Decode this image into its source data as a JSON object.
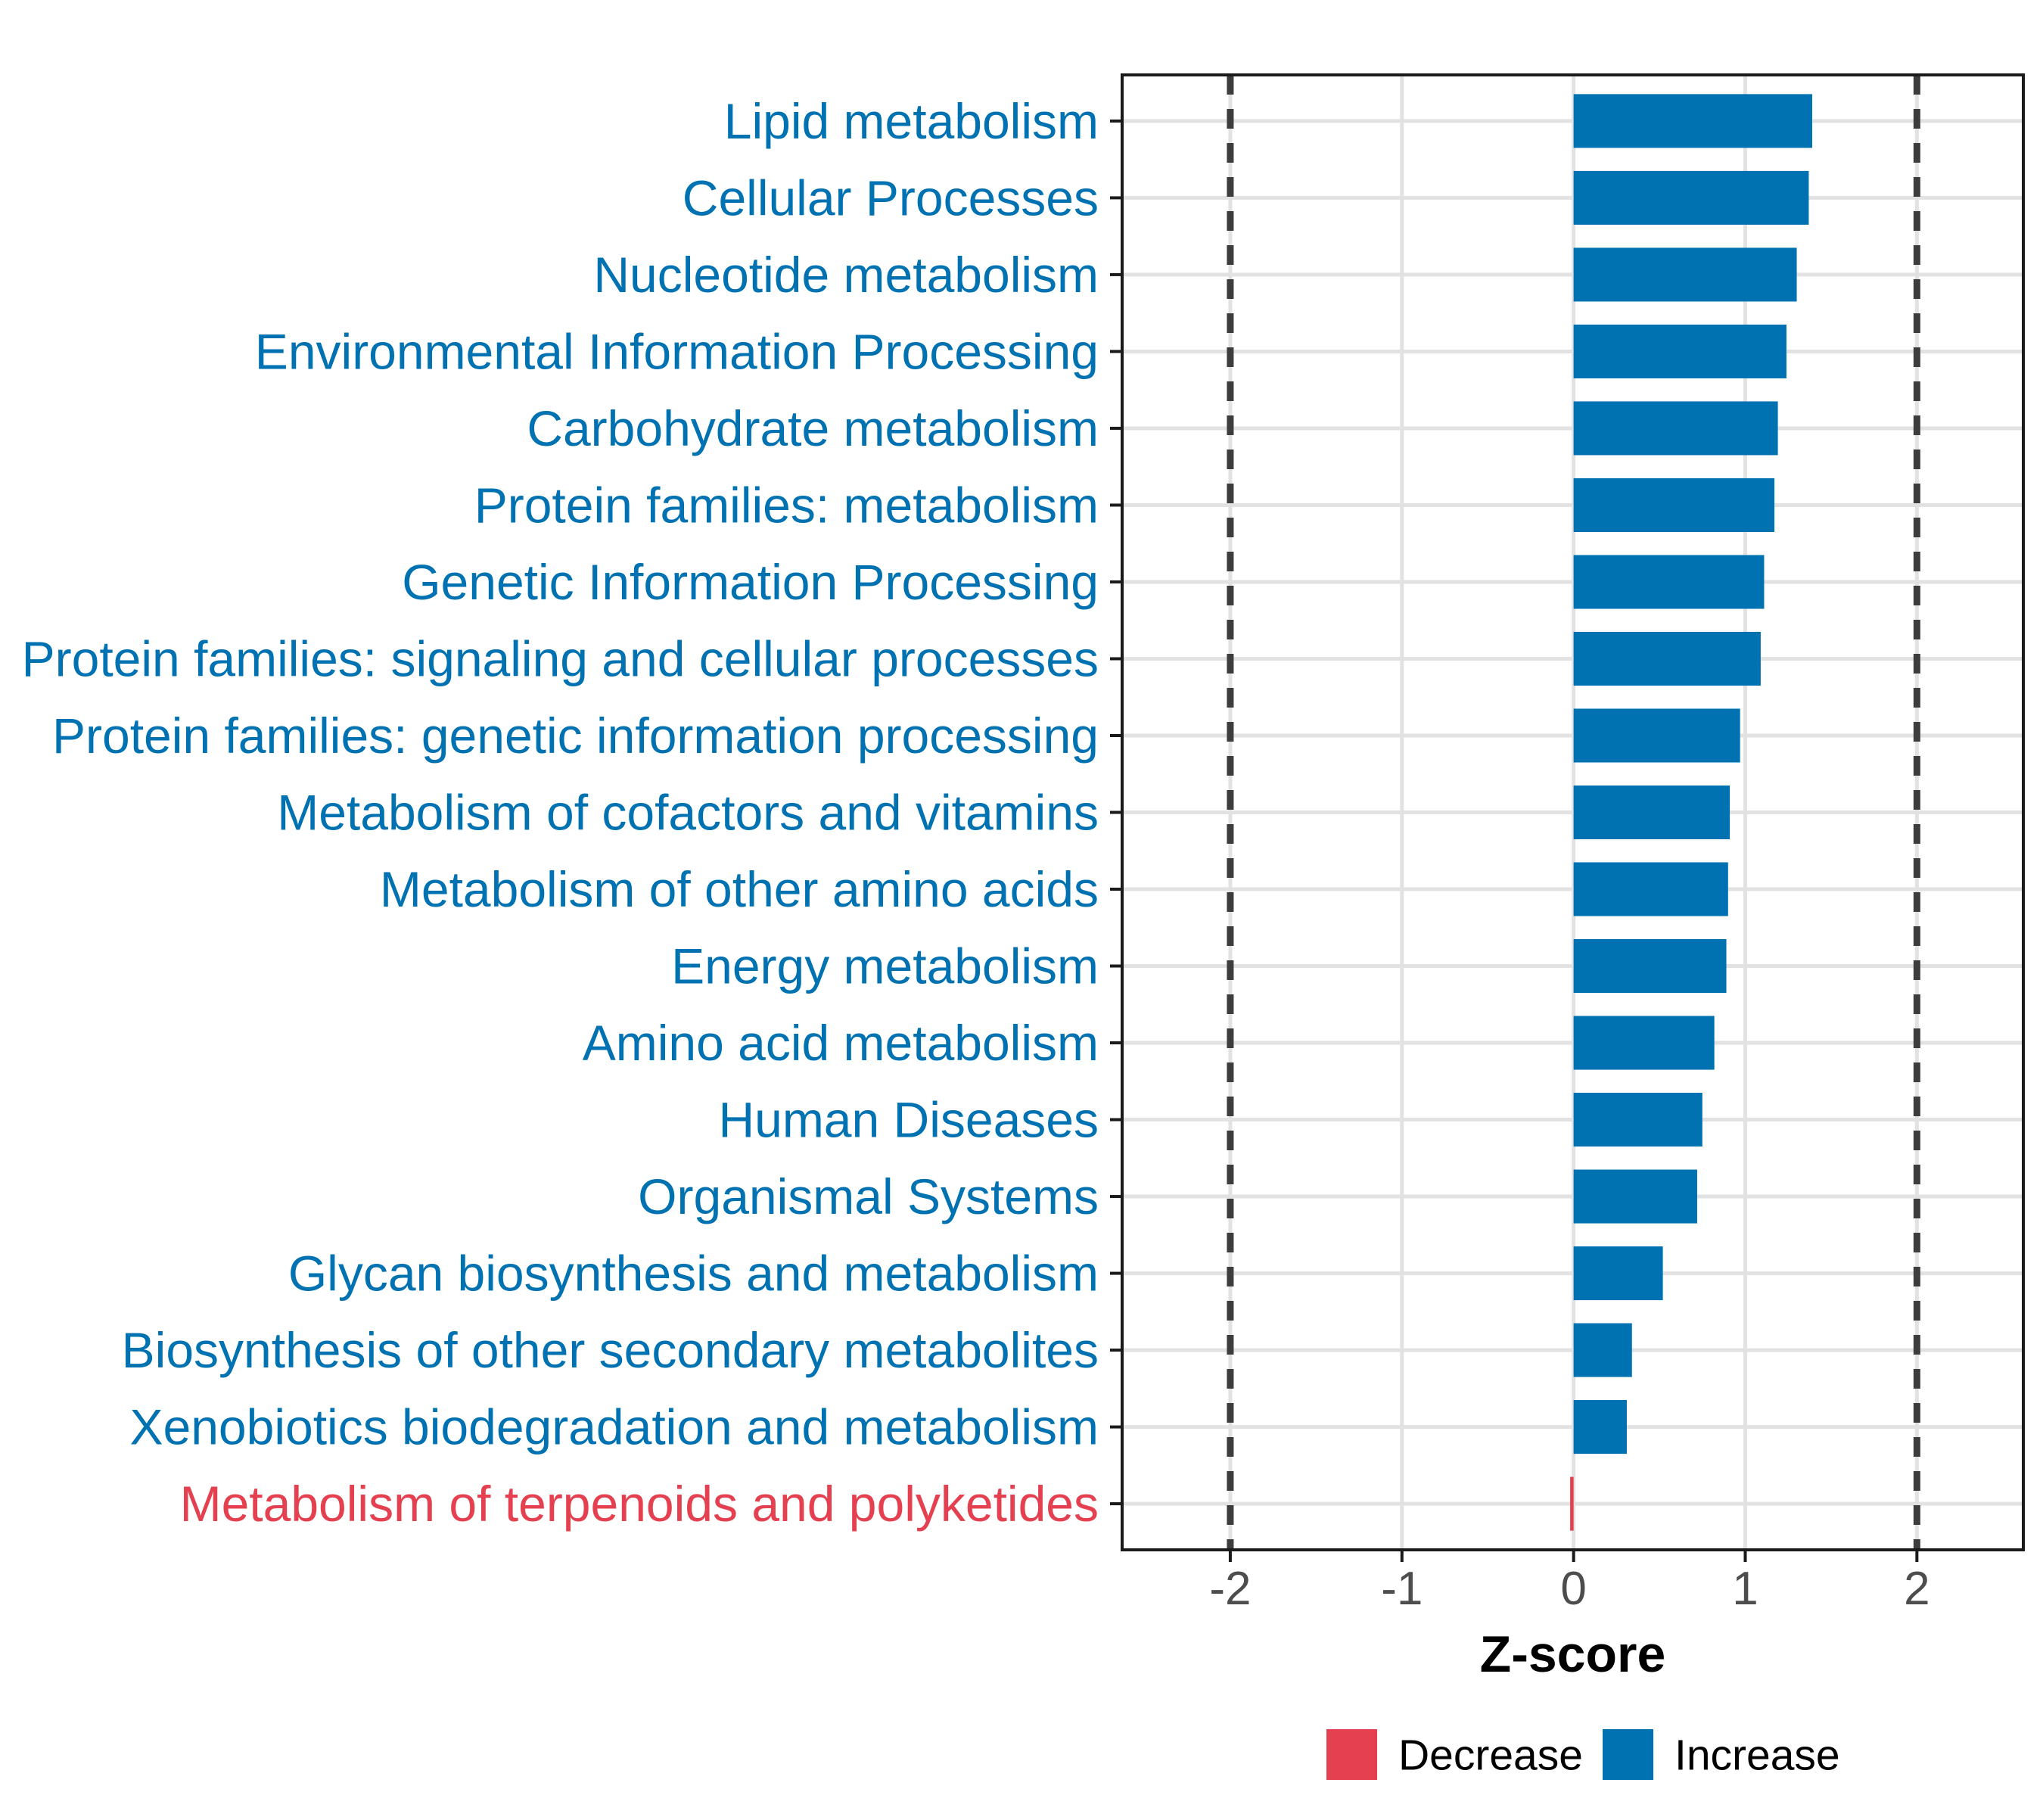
{
  "chart_data": {
    "type": "bar",
    "orientation": "horizontal",
    "title": "",
    "xlabel": "Z-score",
    "ylabel": "",
    "categories": [
      "Lipid metabolism",
      "Cellular Processes",
      "Nucleotide metabolism",
      "Environmental Information Processing",
      "Carbohydrate metabolism",
      "Protein families: metabolism",
      "Genetic Information Processing",
      "Protein families: signaling and cellular processes",
      "Protein families: genetic information processing",
      "Metabolism of cofactors and vitamins",
      "Metabolism of other amino acids",
      "Energy metabolism",
      "Amino acid metabolism",
      "Human Diseases",
      "Organismal Systems",
      "Glycan biosynthesis and metabolism",
      "Biosynthesis of other secondary metabolites",
      "Xenobiotics biodegradation and metabolism",
      "Metabolism of terpenoids and polyketides"
    ],
    "values": [
      1.39,
      1.37,
      1.3,
      1.24,
      1.19,
      1.17,
      1.11,
      1.09,
      0.97,
      0.91,
      0.9,
      0.89,
      0.82,
      0.75,
      0.72,
      0.52,
      0.34,
      0.31,
      -0.02
    ],
    "groups": [
      "Increase",
      "Increase",
      "Increase",
      "Increase",
      "Increase",
      "Increase",
      "Increase",
      "Increase",
      "Increase",
      "Increase",
      "Increase",
      "Increase",
      "Increase",
      "Increase",
      "Increase",
      "Increase",
      "Increase",
      "Increase",
      "Decrease"
    ],
    "colors": {
      "Increase": "#0072B2",
      "Decrease": "#E4404F"
    },
    "x_ticks": [
      -2,
      -1,
      0,
      1,
      2
    ],
    "x_tick_labels": [
      "-2",
      "-1",
      "0",
      "1",
      "2"
    ],
    "xlim": [
      -2.63,
      2.62
    ],
    "reference_lines": [
      -2,
      2
    ],
    "grid": true,
    "legend_position": "bottom-right",
    "legend": {
      "items": [
        {
          "label": "Decrease",
          "color": "#E4404F"
        },
        {
          "label": "Increase",
          "color": "#0072B2"
        }
      ]
    },
    "style": {
      "axis_text_color": "#4D4D4D",
      "axis_title_color": "#000000",
      "panel_border_color": "#1A1A1A",
      "gridline_color": "#E2E2E2",
      "reference_line_color": "#3D3D3D",
      "background_color": "#FFFFFF"
    }
  }
}
